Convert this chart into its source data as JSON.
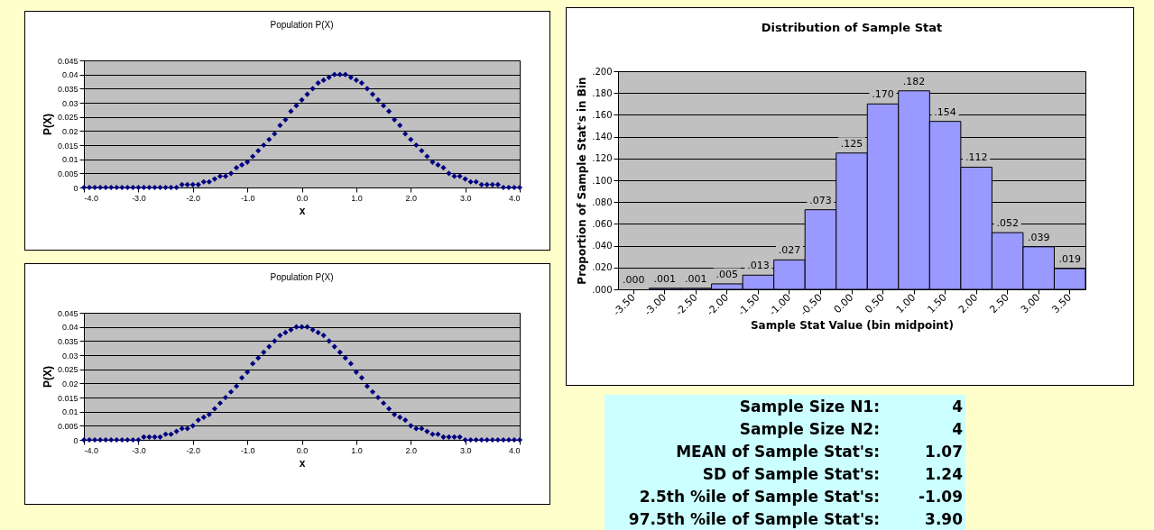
{
  "chart_data": [
    {
      "type": "scatter",
      "title": "Population P(X)",
      "xlabel": "x",
      "ylabel": "P(X)",
      "marker": "diamond",
      "grid": "y",
      "xlim": [
        -4,
        4
      ],
      "xticks": [
        {
          "value": -4,
          "label": "-4.0"
        },
        {
          "value": -3,
          "label": "-3.0"
        },
        {
          "value": -2,
          "label": "-2.0"
        },
        {
          "value": -1,
          "label": "-1.0"
        },
        {
          "value": 0,
          "label": "0.0"
        },
        {
          "value": 1,
          "label": "1.0"
        },
        {
          "value": 2,
          "label": "2.0"
        },
        {
          "value": 3,
          "label": "3.0"
        },
        {
          "value": 4,
          "label": "4.0"
        }
      ],
      "ylim": [
        0,
        0.045
      ],
      "yticks": [
        0,
        0.005,
        0.01,
        0.015,
        0.02,
        0.025,
        0.03,
        0.035,
        0.04,
        0.045
      ],
      "series": [
        {
          "color": "#000080",
          "x": [
            -4,
            -3.9,
            -3.8,
            -3.7,
            -3.6,
            -3.5,
            -3.4,
            -3.3,
            -3.2,
            -3.1,
            -3,
            -2.9,
            -2.8,
            -2.7,
            -2.6,
            -2.5,
            -2.4,
            -2.3,
            -2.2,
            -2.1,
            -2,
            -1.9,
            -1.8,
            -1.7,
            -1.6,
            -1.5,
            -1.4,
            -1.3,
            -1.2,
            -1.1,
            -1,
            -0.9,
            -0.8,
            -0.7,
            -0.6,
            -0.5,
            -0.4,
            -0.3,
            -0.2,
            -0.1,
            0,
            0.1,
            0.2,
            0.3,
            0.4,
            0.5,
            0.6,
            0.7,
            0.8,
            0.9,
            1,
            1.1,
            1.2,
            1.3,
            1.4,
            1.5,
            1.6,
            1.7,
            1.8,
            1.9,
            2,
            2.1,
            2.2,
            2.3,
            2.4,
            2.5,
            2.6,
            2.7,
            2.8,
            2.9,
            3,
            3.1,
            3.2,
            3.3,
            3.4,
            3.5,
            3.6,
            3.7,
            3.8,
            3.9,
            4
          ],
          "values": [
            0,
            0,
            0,
            0,
            0,
            0,
            0,
            0,
            0,
            0,
            0,
            0,
            0,
            0,
            0,
            0,
            0,
            0,
            0.001,
            0.001,
            0.001,
            0.001,
            0.002,
            0.002,
            0.003,
            0.004,
            0.004,
            0.005,
            0.007,
            0.008,
            0.009,
            0.011,
            0.013,
            0.015,
            0.017,
            0.019,
            0.022,
            0.024,
            0.027,
            0.029,
            0.031,
            0.033,
            0.035,
            0.037,
            0.038,
            0.039,
            0.04,
            0.04,
            0.04,
            0.039,
            0.038,
            0.037,
            0.035,
            0.033,
            0.031,
            0.029,
            0.027,
            0.024,
            0.022,
            0.019,
            0.017,
            0.015,
            0.013,
            0.011,
            0.009,
            0.008,
            0.007,
            0.005,
            0.004,
            0.004,
            0.003,
            0.002,
            0.002,
            0.001,
            0.001,
            0.001,
            0.001,
            0,
            0,
            0,
            0
          ]
        }
      ]
    },
    {
      "type": "scatter",
      "title": "Population P(X)",
      "xlabel": "x",
      "ylabel": "P(X)",
      "marker": "diamond",
      "grid": "y",
      "xlim": [
        -4,
        4
      ],
      "xticks": [
        {
          "value": -4,
          "label": "-4.0"
        },
        {
          "value": -3,
          "label": "-3.0"
        },
        {
          "value": -2,
          "label": "-2.0"
        },
        {
          "value": -1,
          "label": "-1.0"
        },
        {
          "value": 0,
          "label": "0.0"
        },
        {
          "value": 1,
          "label": "1.0"
        },
        {
          "value": 2,
          "label": "2.0"
        },
        {
          "value": 3,
          "label": "3.0"
        },
        {
          "value": 4,
          "label": "4.0"
        }
      ],
      "ylim": [
        0,
        0.045
      ],
      "yticks": [
        0,
        0.005,
        0.01,
        0.015,
        0.02,
        0.025,
        0.03,
        0.035,
        0.04,
        0.045
      ],
      "series": [
        {
          "color": "#000080",
          "x": [
            -4,
            -3.9,
            -3.8,
            -3.7,
            -3.6,
            -3.5,
            -3.4,
            -3.3,
            -3.2,
            -3.1,
            -3,
            -2.9,
            -2.8,
            -2.7,
            -2.6,
            -2.5,
            -2.4,
            -2.3,
            -2.2,
            -2.1,
            -2,
            -1.9,
            -1.8,
            -1.7,
            -1.6,
            -1.5,
            -1.4,
            -1.3,
            -1.2,
            -1.1,
            -1,
            -0.9,
            -0.8,
            -0.7,
            -0.6,
            -0.5,
            -0.4,
            -0.3,
            -0.2,
            -0.1,
            0,
            0.1,
            0.2,
            0.3,
            0.4,
            0.5,
            0.6,
            0.7,
            0.8,
            0.9,
            1,
            1.1,
            1.2,
            1.3,
            1.4,
            1.5,
            1.6,
            1.7,
            1.8,
            1.9,
            2,
            2.1,
            2.2,
            2.3,
            2.4,
            2.5,
            2.6,
            2.7,
            2.8,
            2.9,
            3,
            3.1,
            3.2,
            3.3,
            3.4,
            3.5,
            3.6,
            3.7,
            3.8,
            3.9,
            4
          ],
          "values": [
            0,
            0,
            0,
            0,
            0,
            0,
            0,
            0,
            0,
            0,
            0,
            0.001,
            0.001,
            0.001,
            0.001,
            0.002,
            0.002,
            0.003,
            0.004,
            0.004,
            0.005,
            0.007,
            0.008,
            0.009,
            0.011,
            0.013,
            0.015,
            0.017,
            0.019,
            0.022,
            0.024,
            0.027,
            0.029,
            0.031,
            0.033,
            0.035,
            0.037,
            0.038,
            0.039,
            0.04,
            0.04,
            0.04,
            0.039,
            0.038,
            0.037,
            0.035,
            0.033,
            0.031,
            0.029,
            0.027,
            0.024,
            0.022,
            0.019,
            0.017,
            0.015,
            0.013,
            0.011,
            0.009,
            0.008,
            0.007,
            0.005,
            0.004,
            0.004,
            0.003,
            0.002,
            0.002,
            0.001,
            0.001,
            0.001,
            0.001,
            0,
            0,
            0,
            0,
            0,
            0,
            0,
            0,
            0,
            0,
            0
          ]
        }
      ]
    },
    {
      "type": "bar",
      "title": "Distribution of Sample Stat",
      "xlabel": "Sample Stat Value (bin midpoint)",
      "ylabel": "Proportion of Sample Stat's in Bin",
      "grid": "y",
      "color": "#9999ff",
      "categories": [
        "-3.50",
        "-3.00",
        "-2.50",
        "-2.00",
        "-1.50",
        "-1.00",
        "-0.50",
        "0.00",
        "0.50",
        "1.00",
        "1.50",
        "2.00",
        "2.50",
        "3.00",
        "3.50"
      ],
      "values": [
        0,
        0.001,
        0.001,
        0.005,
        0.013,
        0.027,
        0.073,
        0.125,
        0.17,
        0.182,
        0.154,
        0.112,
        0.052,
        0.039,
        0.019
      ],
      "value_labels": [
        ".000",
        ".001",
        ".001",
        ".005",
        ".013",
        ".027",
        ".073",
        ".125",
        ".170",
        ".182",
        ".154",
        ".112",
        ".052",
        ".039",
        ".019"
      ],
      "ylim": [
        0,
        0.2
      ],
      "yticks": [
        {
          "value": 0,
          "label": ".000"
        },
        {
          "value": 0.02,
          "label": ".020"
        },
        {
          "value": 0.04,
          "label": ".040"
        },
        {
          "value": 0.06,
          "label": ".060"
        },
        {
          "value": 0.08,
          "label": ".080"
        },
        {
          "value": 0.1,
          "label": ".100"
        },
        {
          "value": 0.12,
          "label": ".120"
        },
        {
          "value": 0.14,
          "label": ".140"
        },
        {
          "value": 0.16,
          "label": ".160"
        },
        {
          "value": 0.18,
          "label": ".180"
        },
        {
          "value": 0.2,
          "label": ".200"
        }
      ]
    },
    {
      "type": "other",
      "annotations": [
        "Sample Size N1:",
        "4",
        "Sample Size N2:",
        "4",
        "MEAN of Sample Stat's:",
        "1.07",
        "SD of Sample Stat's:",
        "1.24",
        "2.5th %ile of Sample Stat's:",
        "-1.09",
        "97.5th %ile of Sample Stat's:",
        "3.90"
      ]
    }
  ]
}
